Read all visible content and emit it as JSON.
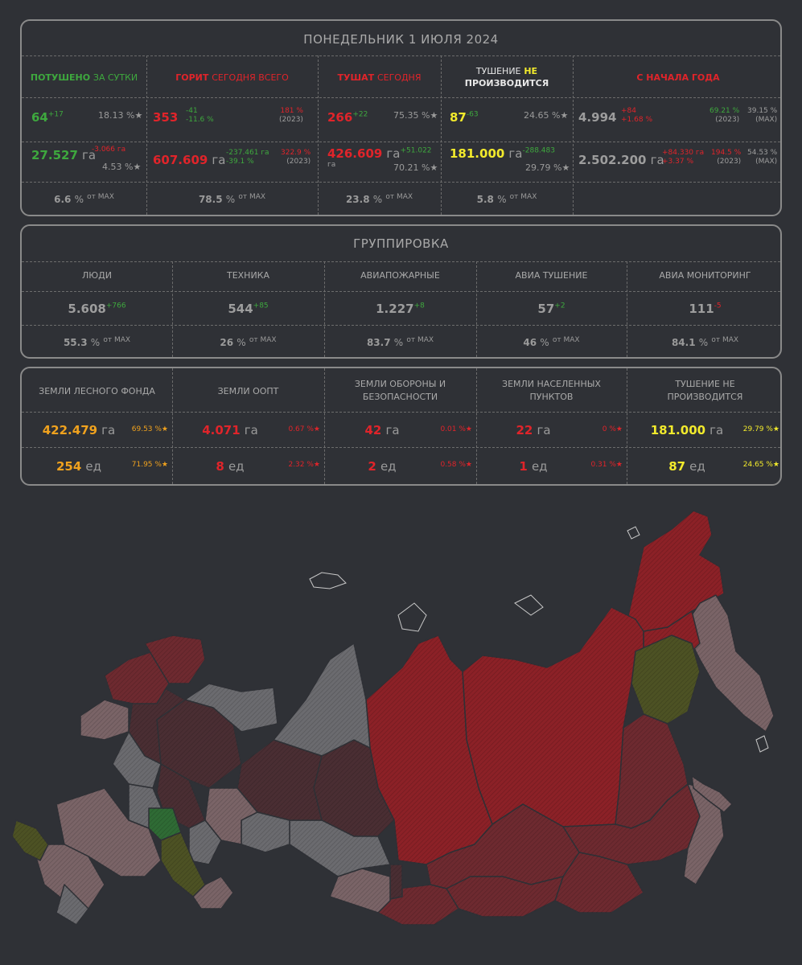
{
  "header": {
    "date": "ПОНЕДЕЛЬНИК 1 ИЮЛЯ 2024"
  },
  "columns": {
    "extinguished": {
      "label_a": "ПОТУШЕНО",
      "label_b": "ЗА СУТКИ"
    },
    "burning": {
      "label_a": "ГОРИТ",
      "label_b": "СЕГОДНЯ ВСЕГО"
    },
    "fighting": {
      "label_a": "ТУШАТ",
      "label_b": "СЕГОДНЯ"
    },
    "not_fighting": {
      "label_a": "ТУШЕНИЕ",
      "label_b": "НЕ",
      "label_c": "ПРОИЗВОДИТСЯ"
    },
    "ytd": {
      "label": "С НАЧАЛА ГОДА"
    }
  },
  "row_count": {
    "extinguished": {
      "value": "64",
      "delta": "+17",
      "pct": "18.13 %★"
    },
    "burning": {
      "value": "353",
      "delta": "-41",
      "delta_pct": "-11.6 %",
      "cmp": "181 %",
      "year": "(2023)"
    },
    "fighting": {
      "value": "266",
      "delta": "+22",
      "pct": "75.35 %★"
    },
    "not_fighting": {
      "value": "87",
      "delta": "-63",
      "pct": "24.65 %★"
    },
    "ytd": {
      "value": "4.994",
      "delta": "+84",
      "delta_pct": "+1.68 %",
      "cmp": "69.21 %",
      "year": "(2023)",
      "max_pct": "39.15 %",
      "max": "(MAX)"
    }
  },
  "row_area": {
    "extinguished": {
      "value": "27.527",
      "unit": "га",
      "delta": "-3.066 га",
      "pct": "4.53 %★"
    },
    "burning": {
      "value": "607.609",
      "unit": "га",
      "delta": "-237.461 га",
      "delta_pct": "-39.1 %",
      "cmp": "322.9 %",
      "year": "(2023)"
    },
    "fighting": {
      "value": "426.609",
      "unit": "га",
      "delta": "+51.022",
      "unit2": "га",
      "pct": "70.21 %★"
    },
    "not_fighting": {
      "value": "181.000",
      "unit": "га",
      "delta": "-288.483",
      "pct": "29.79 %★"
    },
    "ytd": {
      "value": "2.502.200",
      "unit": "га",
      "delta": "+84.330 га",
      "delta_pct": "+3.37 %",
      "cmp": "194.5 %",
      "year": "(2023)",
      "max_pct": "54.53 %",
      "max": "(MAX)"
    }
  },
  "row_max": {
    "extinguished": {
      "value": "6.6",
      "pc": "%",
      "sup": "от MAX"
    },
    "burning": {
      "value": "78.5",
      "pc": "%",
      "sup": "от MAX"
    },
    "fighting": {
      "value": "23.8",
      "pc": "%",
      "sup": "от MAX"
    },
    "not_fighting": {
      "value": "5.8",
      "pc": "%",
      "sup": "от MAX"
    }
  },
  "group": {
    "title": "ГРУППИРОВКА",
    "items": [
      {
        "label": "ЛЮДИ",
        "value": "5.608",
        "delta": "+766",
        "max": "55.3",
        "pc": "%",
        "sup": "от MAX"
      },
      {
        "label": "ТЕХНИКА",
        "value": "544",
        "delta": "+85",
        "max": "26",
        "pc": "%",
        "sup": "от MAX"
      },
      {
        "label": "АВИАПОЖАРНЫЕ",
        "value": "1.227",
        "delta": "+8",
        "max": "83.7",
        "pc": "%",
        "sup": "от MAX"
      },
      {
        "label": "АВИА ТУШЕНИЕ",
        "value": "57",
        "delta": "+2",
        "max": "46",
        "pc": "%",
        "sup": "от MAX"
      },
      {
        "label": "АВИА МОНИТОРИНГ",
        "value": "111",
        "delta": "-5",
        "max": "84.1",
        "pc": "%",
        "sup": "от MAX"
      }
    ]
  },
  "lands": {
    "items": [
      {
        "label_1": "ЗЕМЛИ ЛЕСНОГО ФОНДА",
        "label_2": "",
        "area": "422.479",
        "area_unit": "га",
        "area_pct": "69.53 %★",
        "count": "254",
        "count_unit": "ед",
        "count_pct": "71.95 %★"
      },
      {
        "label_1": "ЗЕМЛИ ООПТ",
        "label_2": "",
        "area": "4.071",
        "area_unit": "га",
        "area_pct": "0.67 %★",
        "count": "8",
        "count_unit": "ед",
        "count_pct": "2.32 %★"
      },
      {
        "label_1": "ЗЕМЛИ ОБОРОНЫ И",
        "label_2": "БЕЗОПАСНОСТИ",
        "area": "42",
        "area_unit": "га",
        "area_pct": "0.01 %★",
        "count": "2",
        "count_unit": "ед",
        "count_pct": "0.58 %★"
      },
      {
        "label_1": "ЗЕМЛИ НАСЕЛЕННЫХ",
        "label_2": "ПУНКТОВ",
        "area": "22",
        "area_unit": "га",
        "area_pct": "0 %★",
        "count": "1",
        "count_unit": "ед",
        "count_pct": "0.31 %★"
      },
      {
        "label_1": "ТУШЕНИЕ НЕ",
        "label_2": "ПРОИЗВОДИТСЯ",
        "area": "181.000",
        "area_unit": "га",
        "area_pct": "29.79 %★",
        "count": "87",
        "count_unit": "ед",
        "count_pct": "24.65 %★"
      }
    ]
  },
  "colors": {
    "background": "#2f3136",
    "border": "#8a8a8a",
    "green": "#3ea83e",
    "red": "#e0242a",
    "yellow": "#f2ea2c",
    "orange": "#f0a21e",
    "map_high": "#8c2127",
    "map_mid": "#6e2a30",
    "map_dark": "#4a2e33",
    "map_light": "#7a6467",
    "map_gray": "#6b6b6f",
    "map_green": "#2f6b35",
    "map_olive": "#4d5224"
  },
  "map": {
    "legend": []
  }
}
